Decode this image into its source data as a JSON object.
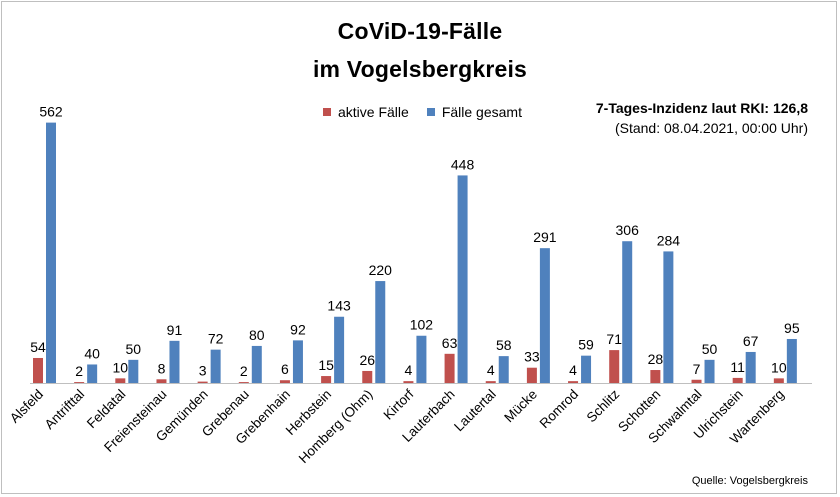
{
  "header": {
    "title_line1": "CoViD-19-Fälle",
    "title_line2": "im Vogelsbergkreis"
  },
  "incidence": {
    "label": "7-Tages-Inzidenz laut RKI: 126,8",
    "note": "(Stand: 08.04.2021, 00:00 Uhr)"
  },
  "source": "Quelle: Vogelsbergkreis",
  "chart_data": {
    "type": "bar",
    "categories": [
      "Alsfeld",
      "Antrifttal",
      "Feldatal",
      "Freiensteinau",
      "Gemünden",
      "Grebenau",
      "Grebenhain",
      "Herbstein",
      "Homberg (Ohm)",
      "Kirtorf",
      "Lauterbach",
      "Lautertal",
      "Mücke",
      "Romrod",
      "Schlitz",
      "Schotten",
      "Schwalmtal",
      "Ulrichstein",
      "Wartenberg"
    ],
    "series": [
      {
        "name": "aktive Fälle",
        "color": "#c0504d",
        "values": [
          54,
          2,
          10,
          8,
          3,
          2,
          6,
          15,
          26,
          4,
          63,
          4,
          33,
          4,
          71,
          28,
          7,
          11,
          10
        ]
      },
      {
        "name": "Fälle gesamt",
        "color": "#4f81bd",
        "values": [
          562,
          40,
          50,
          91,
          72,
          80,
          92,
          143,
          220,
          102,
          448,
          58,
          291,
          59,
          306,
          284,
          50,
          67,
          95
        ]
      }
    ],
    "ylim": [
      0,
      600
    ],
    "grid": false,
    "legend": "top-center"
  }
}
